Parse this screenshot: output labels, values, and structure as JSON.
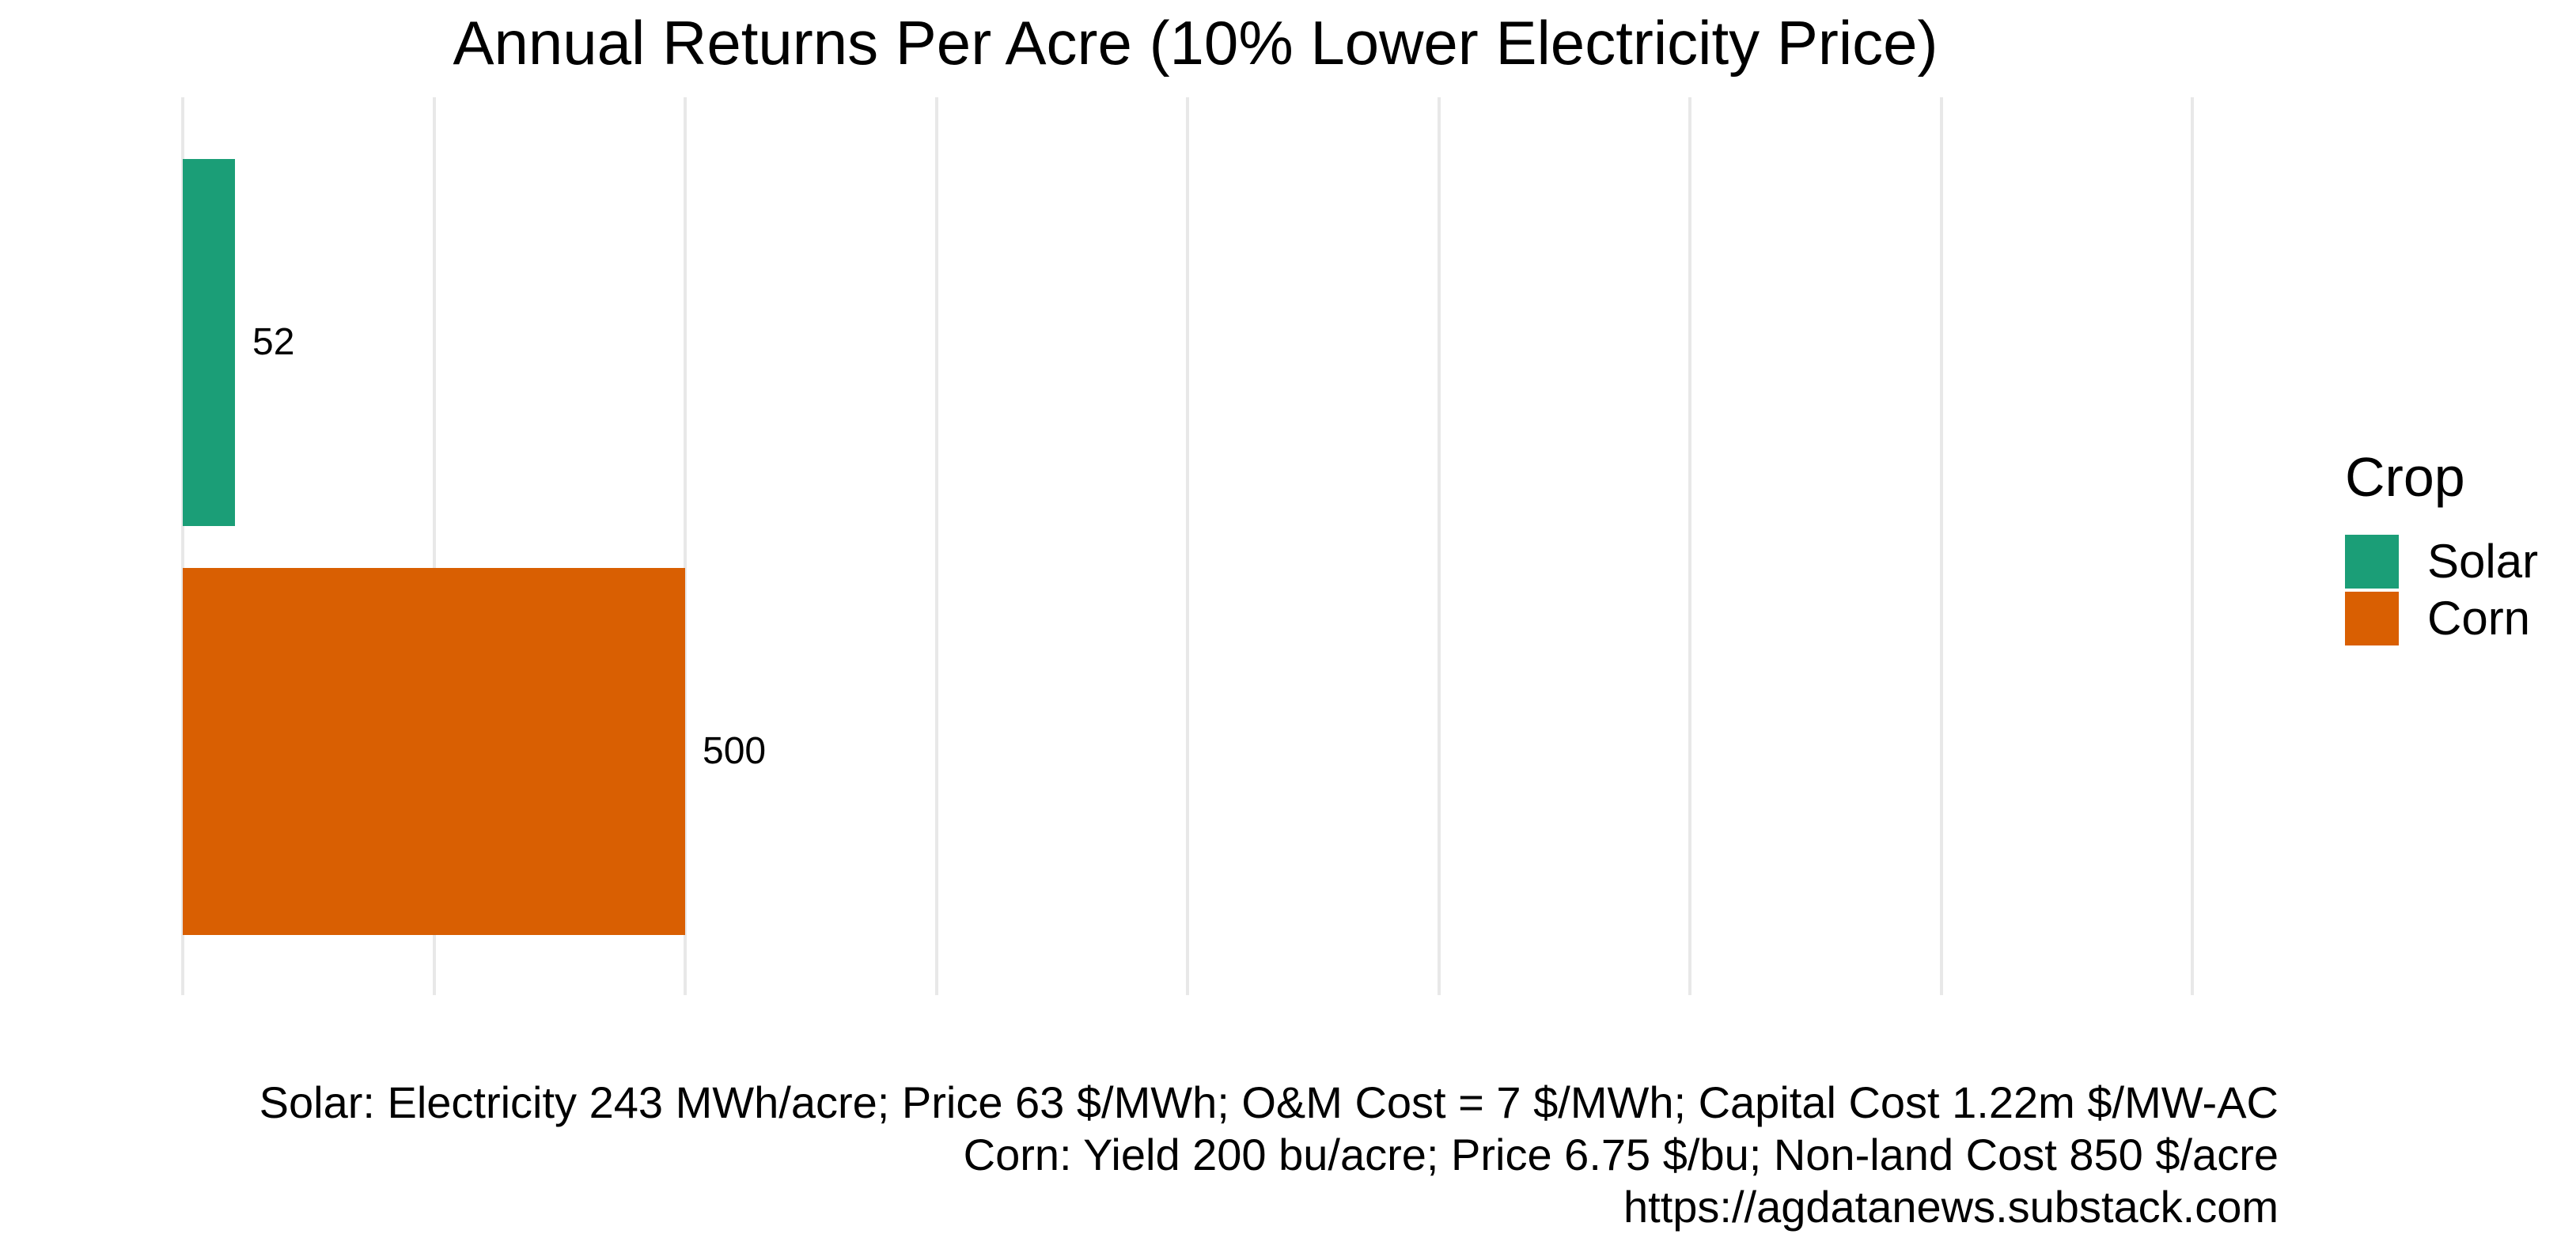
{
  "page": {
    "background_color": "#FFFFFF",
    "text_color": "#000000"
  },
  "chart_data": {
    "type": "bar",
    "orientation": "horizontal",
    "title": "Annual Returns Per Acre (10% Lower Electricity Price)",
    "categories": [
      "Solar",
      "Corn"
    ],
    "values": [
      52,
      500
    ],
    "bar_colors": [
      "#1B9E77",
      "#D95F02"
    ],
    "value_labels": [
      "52",
      "500"
    ],
    "xlabel": "",
    "ylabel": "",
    "x_axis": {
      "min": 0,
      "max": 2000,
      "gridline_interval": 250,
      "tick_labels_visible": false
    },
    "grid": {
      "vertical": true,
      "horizontal": false,
      "color": "#E8E8E8"
    },
    "legend": {
      "position": "right",
      "title": "Crop",
      "entries": [
        {
          "label": "Solar",
          "color": "#1B9E77"
        },
        {
          "label": "Corn",
          "color": "#D95F02"
        }
      ]
    },
    "caption_lines": [
      "Solar: Electricity 243 MWh/acre; Price 63 $/MWh; O&M Cost = 7 $/MWh; Capital Cost 1.22m $/MW-AC",
      "Corn: Yield 200 bu/acre; Price 6.75 $/bu; Non-land Cost 850 $/acre",
      "https://agdatanews.substack.com"
    ]
  }
}
